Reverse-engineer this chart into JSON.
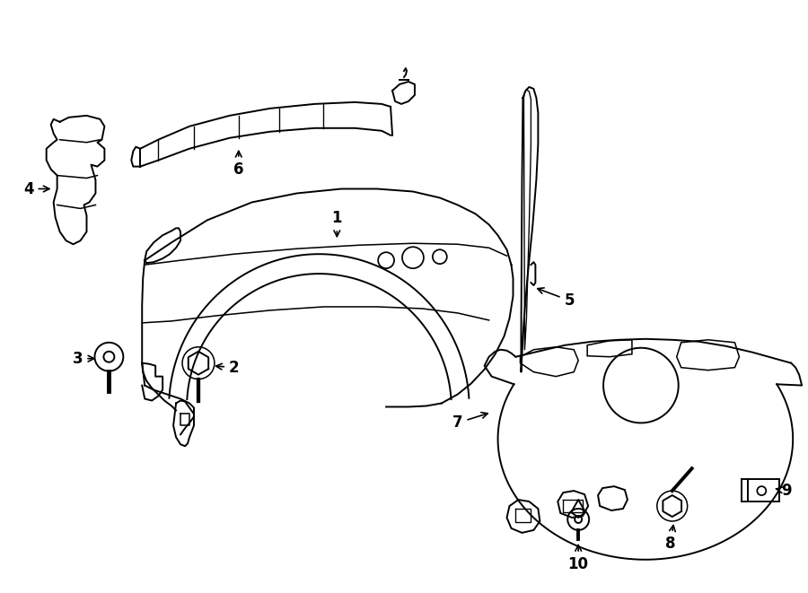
{
  "bg_color": "#ffffff",
  "line_color": "#000000",
  "figsize": [
    9.0,
    6.61
  ],
  "dpi": 100,
  "label_fontsize": 12,
  "lw": 1.4
}
